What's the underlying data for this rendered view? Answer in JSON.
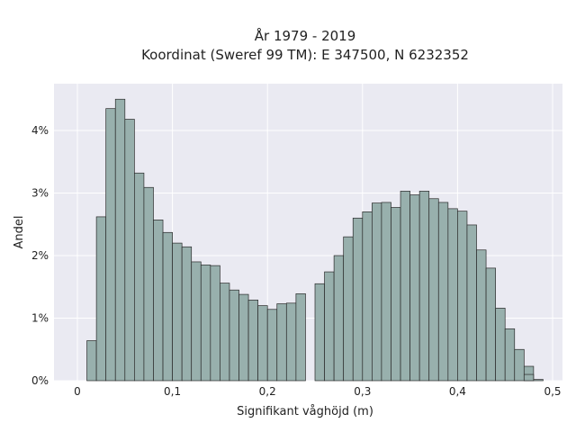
{
  "chart_data": {
    "type": "bar",
    "title_lines": [
      "År 1979 - 2019",
      "Koordinat (Sweref 99 TM): E 347500, N 6232352"
    ],
    "xlabel": "Signifikant våghöjd (m)",
    "ylabel": "Andel",
    "xlim": [
      -0.02,
      0.5
    ],
    "ylim": [
      0,
      4.6
    ],
    "x_ticks": [
      0,
      0.1,
      0.2,
      0.3,
      0.4,
      0.5
    ],
    "x_tick_labels": [
      "0",
      "0,1",
      "0,2",
      "0,3",
      "0,4",
      "0,5"
    ],
    "y_ticks": [
      0,
      1,
      2,
      3,
      4
    ],
    "y_tick_labels": [
      "0%",
      "1%",
      "2%",
      "3%",
      "4%"
    ],
    "grid": true,
    "bin_width": 0.01,
    "bin_starts": [
      0.01,
      0.02,
      0.03,
      0.04,
      0.05,
      0.06,
      0.07,
      0.08,
      0.09,
      0.1,
      0.11,
      0.12,
      0.13,
      0.14,
      0.15,
      0.16,
      0.17,
      0.18,
      0.19,
      0.2,
      0.21,
      0.22,
      0.23,
      0.24,
      0.25,
      0.26,
      0.27,
      0.28,
      0.29,
      0.3,
      0.31,
      0.32,
      0.33,
      0.34,
      0.35,
      0.36,
      0.37,
      0.38,
      0.39,
      0.4,
      0.41,
      0.42,
      0.43,
      0.44,
      0.45,
      0.46,
      0.47
    ],
    "values": [
      0.64,
      2.62,
      4.35,
      4.5,
      4.18,
      3.32,
      3.09,
      2.57,
      2.37,
      2.2,
      2.14,
      1.9,
      1.85,
      1.84,
      1.56,
      1.45,
      1.38,
      1.29,
      1.2,
      1.14,
      1.23,
      1.24,
      1.39,
      0,
      1.55,
      1.74,
      2.0,
      2.3,
      2.6,
      2.7,
      2.84,
      2.85,
      2.77,
      3.03,
      2.97,
      3.03,
      2.91,
      2.85,
      2.75,
      2.71,
      2.49,
      2.09,
      1.8,
      1.16,
      0.83,
      0.5,
      0.23
    ],
    "extra_small_bins": [
      {
        "start": 0.47,
        "value": 0.1
      },
      {
        "start": 0.48,
        "value": 0.02
      }
    ],
    "bar_color": "#98b0ad",
    "edge_color": "#2a2a2a",
    "plot_bg": "#eaeaf2"
  }
}
